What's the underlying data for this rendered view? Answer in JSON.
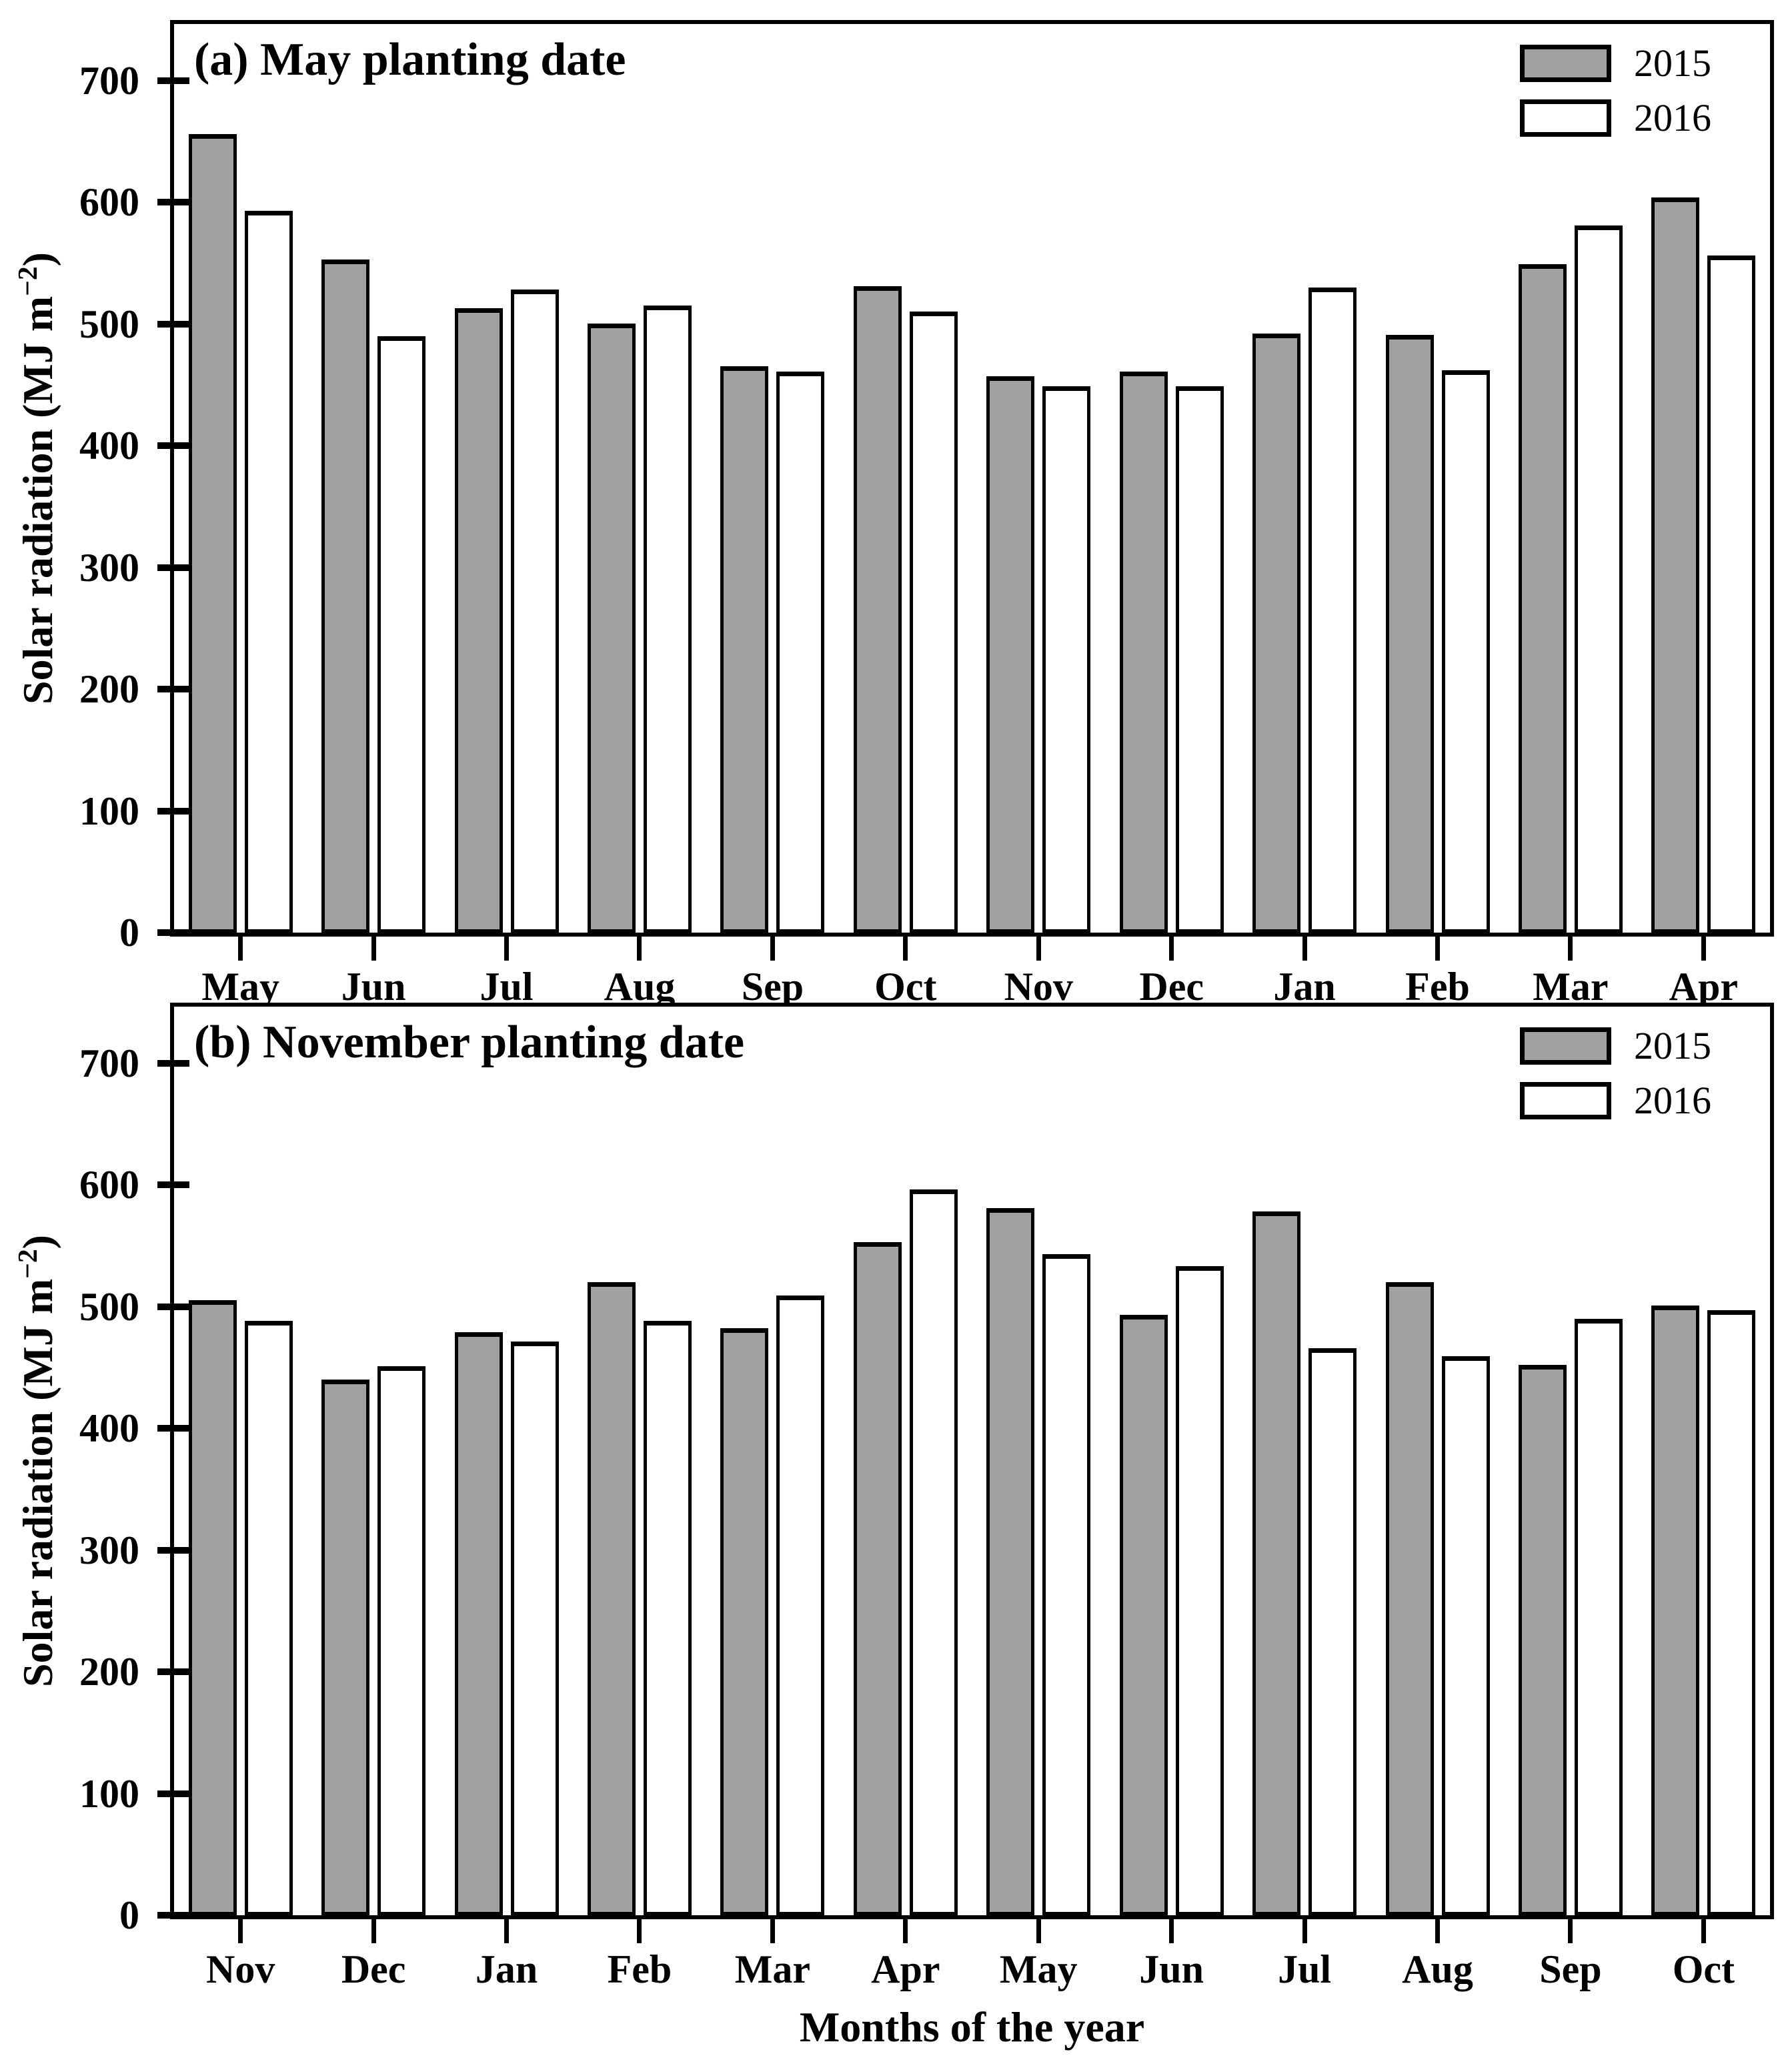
{
  "figure": {
    "xlabel": "Months of the year",
    "ylabel": {
      "main": "Solar radiation (MJ m",
      "sup": "−2",
      "close": ")"
    },
    "legend": [
      {
        "label": "2015",
        "fill": "#a1a1a1"
      },
      {
        "label": "2016",
        "fill": "#ffffff"
      }
    ],
    "colors": {
      "bar_2015": "#a1a1a1",
      "bar_2016": "#ffffff",
      "outline": "#000000",
      "background": "#ffffff"
    }
  },
  "chart_data": [
    {
      "type": "bar",
      "panel": "a",
      "title": "(a) May planting date",
      "categories": [
        "May",
        "Jun",
        "Jul",
        "Aug",
        "Sep",
        "Oct",
        "Nov",
        "Dec",
        "Jan",
        "Feb",
        "Mar",
        "Apr"
      ],
      "series": [
        {
          "name": "2015",
          "fill": "#a1a1a1",
          "values": [
            656,
            553,
            513,
            500,
            465,
            531,
            457,
            461,
            492,
            491,
            549,
            604
          ]
        },
        {
          "name": "2016",
          "fill": "#ffffff",
          "values": [
            593,
            490,
            528,
            515,
            461,
            510,
            449,
            449,
            530,
            462,
            581,
            556
          ]
        }
      ],
      "xlabel": "Months of the year",
      "ylabel": "Solar radiation (MJ m−2)",
      "ylim": [
        0,
        700
      ],
      "yticks": [
        0,
        100,
        200,
        300,
        400,
        500,
        600,
        700
      ],
      "legend_position": "top-right",
      "grid": false
    },
    {
      "type": "bar",
      "panel": "b",
      "title": "(b) November planting date",
      "categories": [
        "Nov",
        "Dec",
        "Jan",
        "Feb",
        "Mar",
        "Apr",
        "May",
        "Jun",
        "Jul",
        "Aug",
        "Sep",
        "Oct"
      ],
      "series": [
        {
          "name": "2015",
          "fill": "#a1a1a1",
          "values": [
            505,
            440,
            479,
            520,
            482,
            553,
            581,
            493,
            578,
            520,
            452,
            501
          ]
        },
        {
          "name": "2016",
          "fill": "#ffffff",
          "values": [
            488,
            451,
            471,
            488,
            509,
            596,
            543,
            533,
            466,
            459,
            490,
            497
          ]
        }
      ],
      "xlabel": "Months of the year",
      "ylabel": "Solar radiation (MJ m−2)",
      "ylim": [
        0,
        700
      ],
      "yticks": [
        0,
        100,
        200,
        300,
        400,
        500,
        600,
        700
      ],
      "legend_position": "top-right",
      "grid": false
    }
  ]
}
